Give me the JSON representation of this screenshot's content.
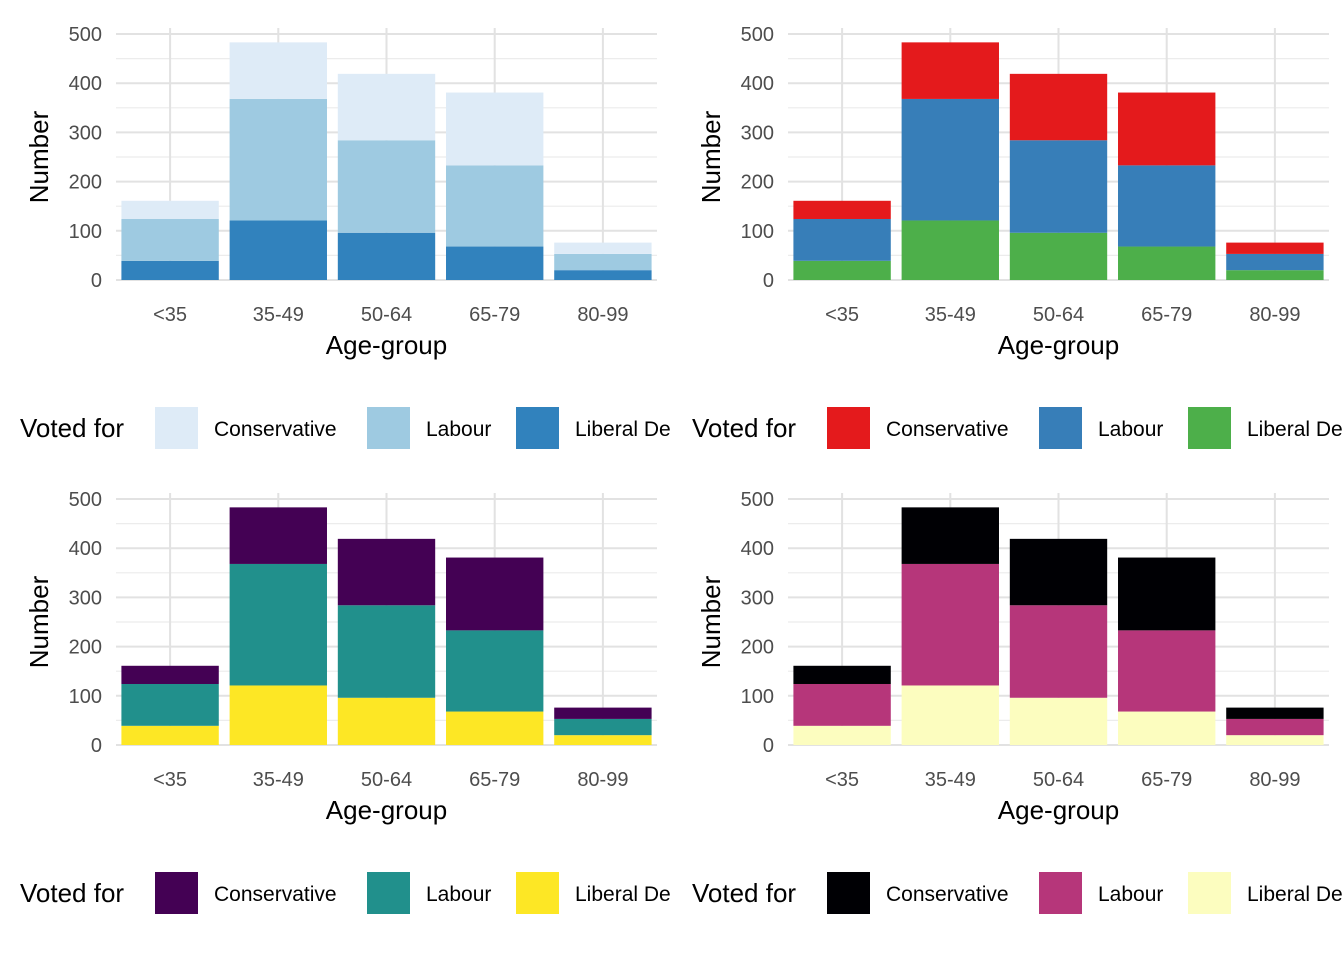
{
  "chart_data": [
    {
      "type": "bar",
      "stacked": true,
      "xlabel": "Age-group",
      "ylabel": "Number",
      "ylim": [
        0,
        500
      ],
      "yticks": [
        0,
        100,
        200,
        300,
        400,
        500
      ],
      "grid": true,
      "legend": {
        "title": "Voted for",
        "placement": "bottom"
      },
      "categories": [
        "<35",
        "35-49",
        "50-64",
        "65-79",
        "80-99"
      ],
      "series": [
        {
          "name": "Conservative",
          "color": "#DEEBF7",
          "values": [
            37,
            115,
            135,
            148,
            23
          ]
        },
        {
          "name": "Labour",
          "color": "#9ECAE1",
          "values": [
            85,
            247,
            188,
            165,
            33
          ]
        },
        {
          "name": "Liberal Democrat",
          "color": "#3182BD",
          "values": [
            39,
            121,
            96,
            68,
            20
          ]
        }
      ]
    },
    {
      "type": "bar",
      "stacked": true,
      "xlabel": "Age-group",
      "ylabel": "Number",
      "ylim": [
        0,
        500
      ],
      "yticks": [
        0,
        100,
        200,
        300,
        400,
        500
      ],
      "grid": true,
      "legend": {
        "title": "Voted for",
        "placement": "bottom"
      },
      "categories": [
        "<35",
        "35-49",
        "50-64",
        "65-79",
        "80-99"
      ],
      "series": [
        {
          "name": "Conservative",
          "color": "#E41A1C",
          "values": [
            37,
            115,
            135,
            148,
            23
          ]
        },
        {
          "name": "Labour",
          "color": "#377EB8",
          "values": [
            85,
            247,
            188,
            165,
            33
          ]
        },
        {
          "name": "Liberal Democrat",
          "color": "#4DAF4A",
          "values": [
            39,
            121,
            96,
            68,
            20
          ]
        }
      ]
    },
    {
      "type": "bar",
      "stacked": true,
      "xlabel": "Age-group",
      "ylabel": "Number",
      "ylim": [
        0,
        500
      ],
      "yticks": [
        0,
        100,
        200,
        300,
        400,
        500
      ],
      "grid": true,
      "legend": {
        "title": "Voted for",
        "placement": "bottom"
      },
      "categories": [
        "<35",
        "35-49",
        "50-64",
        "65-79",
        "80-99"
      ],
      "series": [
        {
          "name": "Conservative",
          "color": "#440154",
          "values": [
            37,
            115,
            135,
            148,
            23
          ]
        },
        {
          "name": "Labour",
          "color": "#21908C",
          "values": [
            85,
            247,
            188,
            165,
            33
          ]
        },
        {
          "name": "Liberal Democrat",
          "color": "#FDE725",
          "values": [
            39,
            121,
            96,
            68,
            20
          ]
        }
      ]
    },
    {
      "type": "bar",
      "stacked": true,
      "xlabel": "Age-group",
      "ylabel": "Number",
      "ylim": [
        0,
        500
      ],
      "yticks": [
        0,
        100,
        200,
        300,
        400,
        500
      ],
      "grid": true,
      "legend": {
        "title": "Voted for",
        "placement": "bottom"
      },
      "categories": [
        "<35",
        "35-49",
        "50-64",
        "65-79",
        "80-99"
      ],
      "series": [
        {
          "name": "Conservative",
          "color": "#000004",
          "values": [
            37,
            115,
            135,
            148,
            23
          ]
        },
        {
          "name": "Labour",
          "color": "#B6367A",
          "values": [
            85,
            247,
            188,
            165,
            33
          ]
        },
        {
          "name": "Liberal Democrat",
          "color": "#FCFDBF",
          "values": [
            39,
            121,
            96,
            68,
            20
          ]
        }
      ]
    }
  ]
}
